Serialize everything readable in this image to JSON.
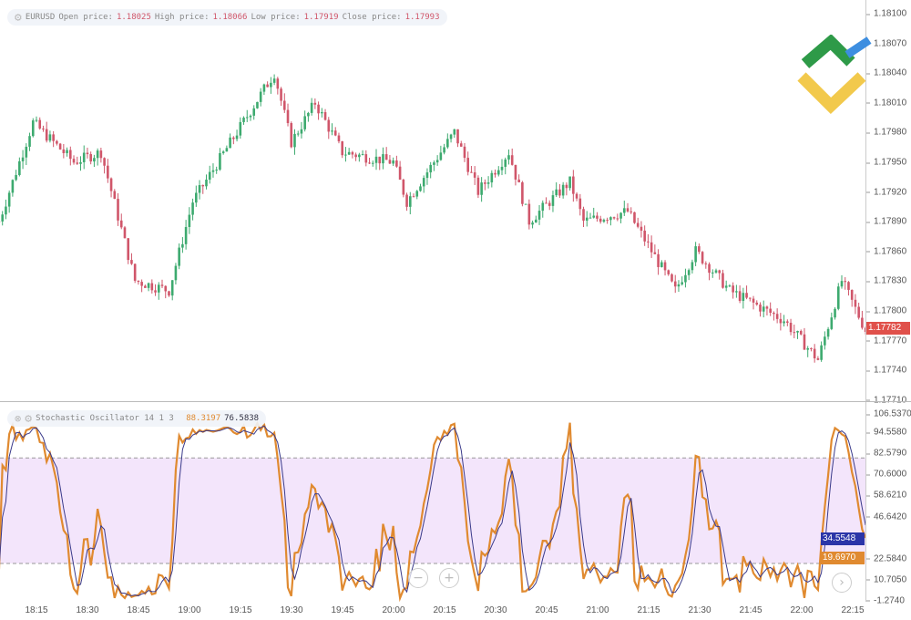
{
  "symbol": "EURUSD",
  "ohlc": {
    "open_label": "Open price:",
    "open": "1.18025",
    "high_label": "High price:",
    "high": "1.18066",
    "low_label": "Low price:",
    "low": "1.17919",
    "close_label": "Close price:",
    "close": "1.17993"
  },
  "indicator": {
    "name": "Stochastic Oscillator 14 1 3",
    "k": "88.3197",
    "d": "76.5838"
  },
  "price_axis": [
    "1.18100",
    "1.18070",
    "1.18040",
    "1.18010",
    "1.17980",
    "1.17950",
    "1.17920",
    "1.17890",
    "1.17860",
    "1.17830",
    "1.17800",
    "1.17770",
    "1.17740",
    "1.17710"
  ],
  "current_price": "1.17782",
  "stoch_axis": [
    "106.5370",
    "94.5580",
    "82.5790",
    "70.6000",
    "58.6210",
    "46.6420",
    "34.5548",
    "22.5840",
    "10.7050",
    "-1.2740"
  ],
  "stoch_tags": {
    "d": "34.5548",
    "k": "19.6970"
  },
  "time_axis": [
    "18:15",
    "18:30",
    "18:45",
    "19:00",
    "19:15",
    "19:30",
    "19:45",
    "20:00",
    "20:15",
    "20:30",
    "20:45",
    "21:00",
    "21:15",
    "21:30",
    "21:45",
    "22:00",
    "22:15"
  ],
  "colors": {
    "up": "#3daa6f",
    "down": "#d0566a",
    "k_line": "#e08a30",
    "d_line": "#3a3a8a",
    "band": "#f3e5fb",
    "price_tag": "#e0504a",
    "d_tag": "#2b35a8",
    "k_tag": "#e08a30"
  },
  "chart_data": {
    "type": "candlestick",
    "price_range": [
      1.1771,
      1.181
    ],
    "stoch_range": [
      -1.274,
      106.537
    ],
    "stoch_levels": [
      20,
      80
    ],
    "close_path": [
      [
        "18:04",
        1.1789
      ],
      [
        "18:14",
        1.1799
      ],
      [
        "18:26",
        1.1795
      ],
      [
        "18:34",
        1.1796
      ],
      [
        "18:44",
        1.1783
      ],
      [
        "18:54",
        1.1782
      ],
      [
        "19:01",
        1.1791
      ],
      [
        "19:14",
        1.1798
      ],
      [
        "19:25",
        1.1804
      ],
      [
        "19:30",
        1.1797
      ],
      [
        "19:37",
        1.1801
      ],
      [
        "19:45",
        1.1796
      ],
      [
        "20:00",
        1.1795
      ],
      [
        "20:04",
        1.1791
      ],
      [
        "20:18",
        1.1798
      ],
      [
        "20:25",
        1.1792
      ],
      [
        "20:34",
        1.1796
      ],
      [
        "20:40",
        1.1789
      ],
      [
        "20:52",
        1.1793
      ],
      [
        "20:56",
        1.1789
      ],
      [
        "21:09",
        1.179
      ],
      [
        "21:23",
        1.1782
      ],
      [
        "21:29",
        1.1786
      ],
      [
        "21:39",
        1.1782
      ],
      [
        "21:55",
        1.1779
      ],
      [
        "22:05",
        1.1775
      ],
      [
        "22:12",
        1.1783
      ],
      [
        "22:19",
        1.1778
      ]
    ]
  },
  "buttons": {
    "zoom_out": "−",
    "zoom_in": "+",
    "scroll": "›"
  }
}
